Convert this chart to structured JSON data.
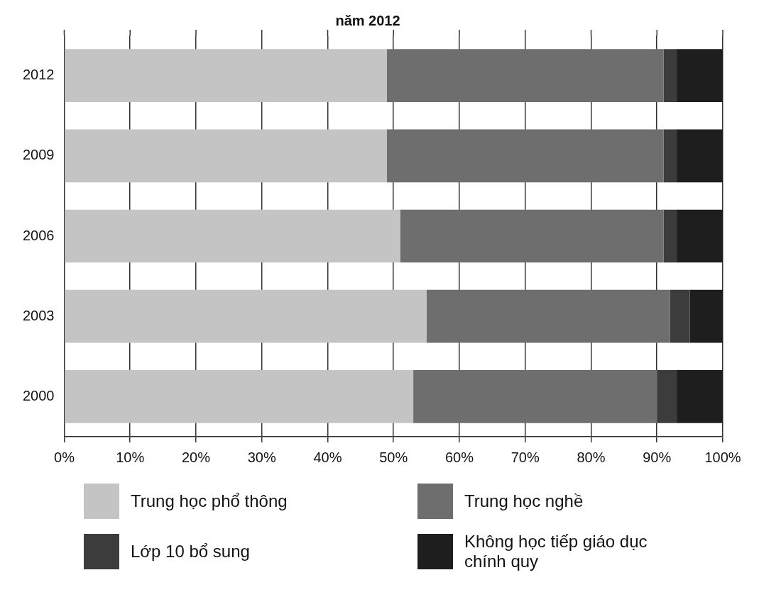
{
  "chart_data": {
    "type": "bar",
    "orientation": "horizontal",
    "stacked": true,
    "title": "năm 2012",
    "categories": [
      "2012",
      "2009",
      "2006",
      "2003",
      "2000"
    ],
    "series": [
      {
        "name": "Trung học phổ thông",
        "color": "#c4c4c4",
        "values": [
          49,
          49,
          51,
          55,
          53
        ]
      },
      {
        "name": "Trung học nghề",
        "color": "#6e6e6e",
        "values": [
          42,
          42,
          40,
          37,
          37
        ]
      },
      {
        "name": "Lớp 10 bổ sung",
        "color": "#3c3c3c",
        "values": [
          2,
          2,
          2,
          3,
          3
        ]
      },
      {
        "name": "Không học tiếp giáo dục chính quy",
        "color": "#1e1e1e",
        "values": [
          7,
          7,
          7,
          5,
          7
        ]
      }
    ],
    "xlim": [
      0,
      100
    ],
    "xticks": [
      {
        "value": 0,
        "label": "0%"
      },
      {
        "value": 10,
        "label": "10%"
      },
      {
        "value": 20,
        "label": "20%"
      },
      {
        "value": 30,
        "label": "30%"
      },
      {
        "value": 40,
        "label": "40%"
      },
      {
        "value": 50,
        "label": "50%"
      },
      {
        "value": 60,
        "label": "60%"
      },
      {
        "value": 70,
        "label": "70%"
      },
      {
        "value": 80,
        "label": "80%"
      },
      {
        "value": 90,
        "label": "90%"
      },
      {
        "value": 100,
        "label": "100%"
      }
    ],
    "grid": "x",
    "legend": "bottom"
  }
}
